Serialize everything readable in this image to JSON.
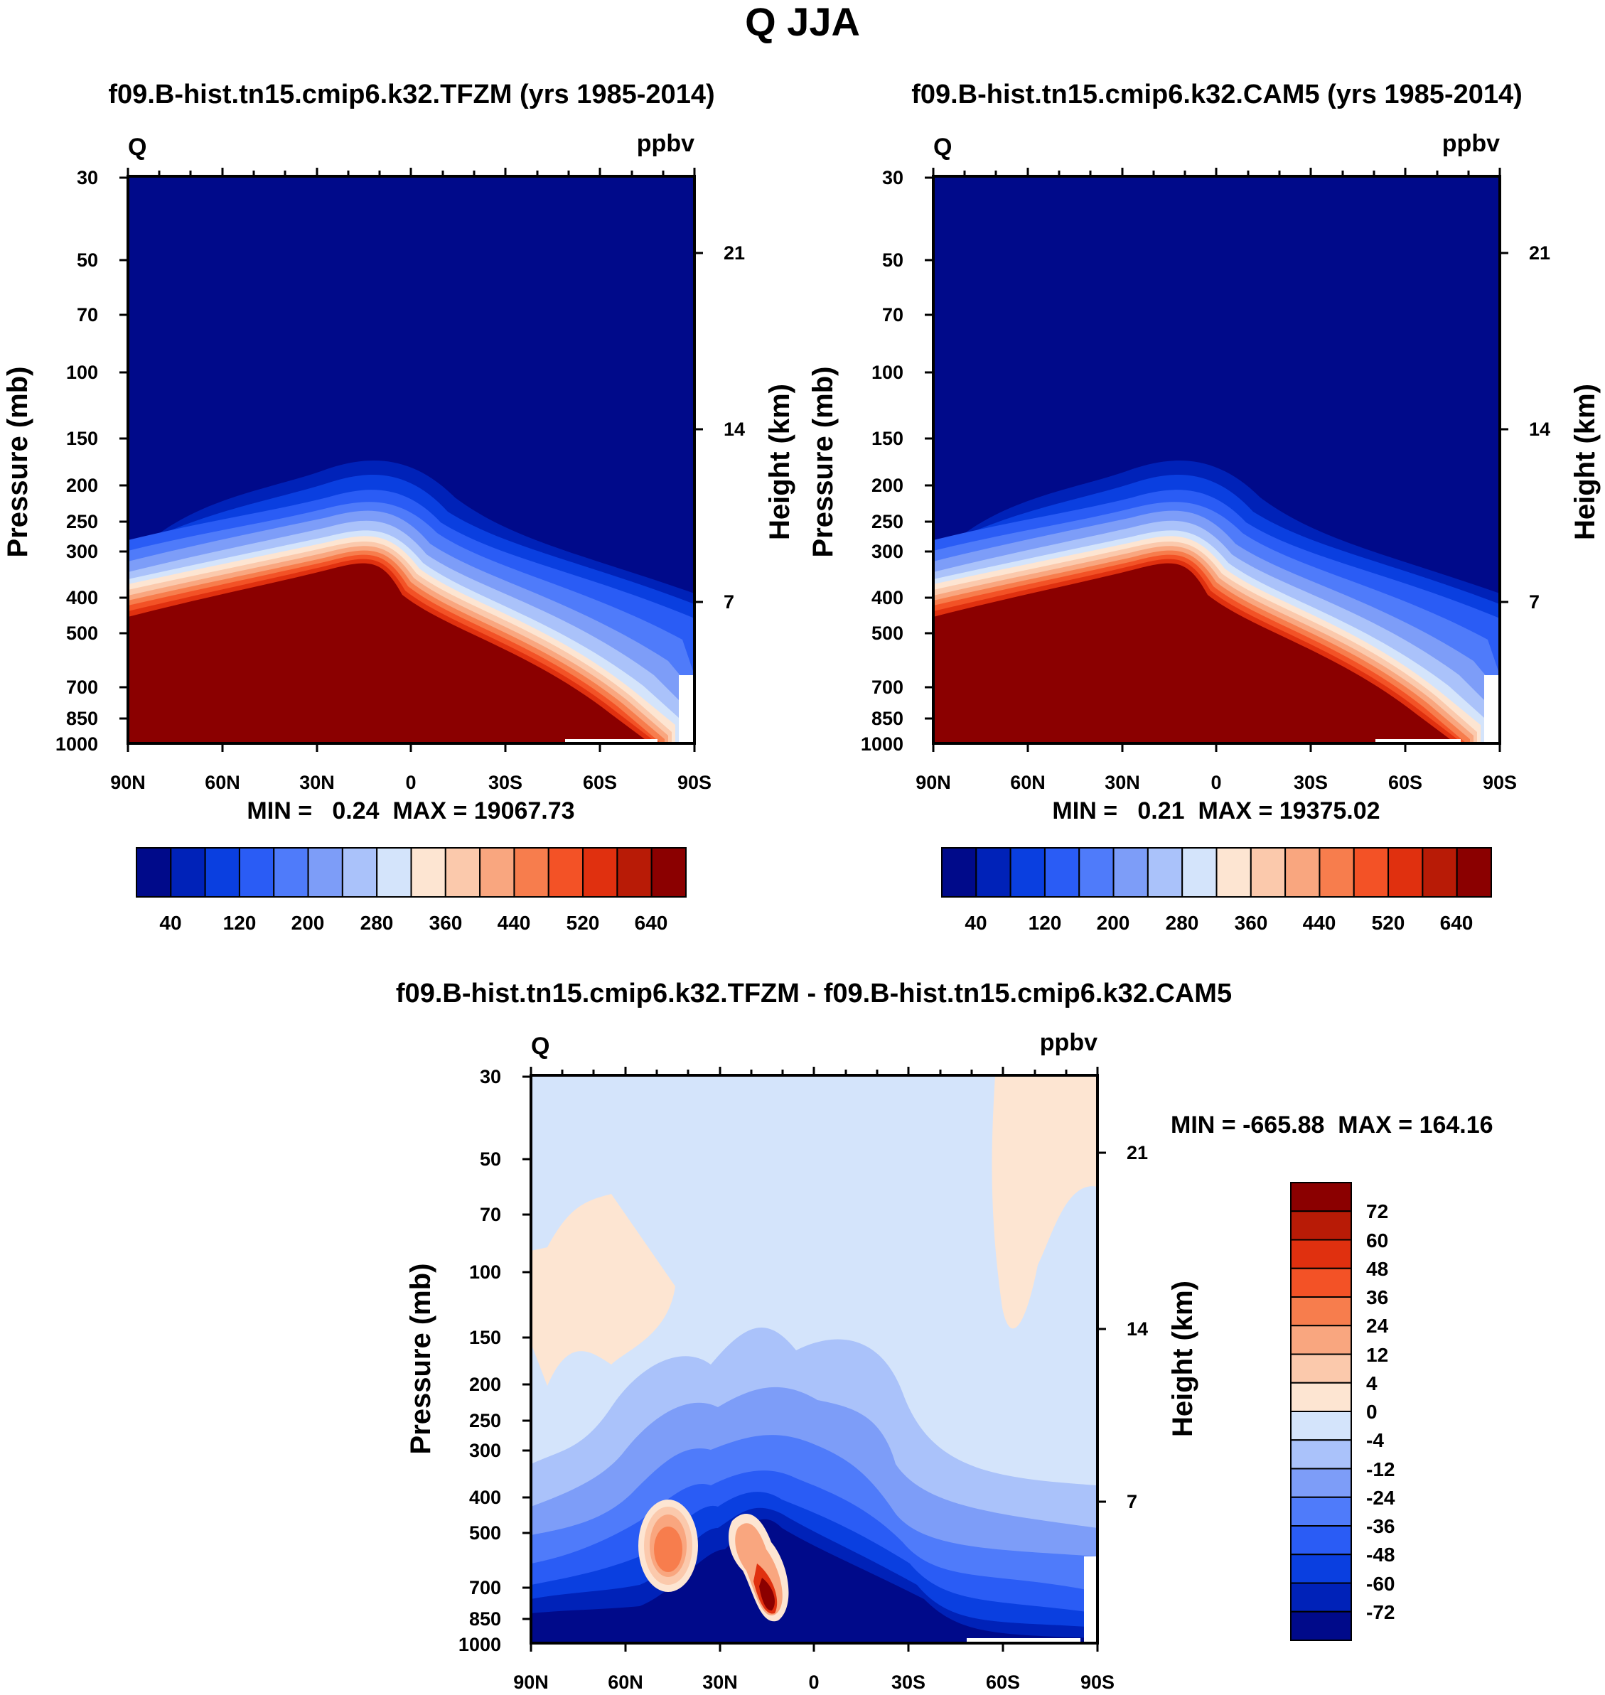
{
  "figure": {
    "title": "Q JJA"
  },
  "chart_data": [
    {
      "type": "heatmap",
      "title": "f09.B-hist.tn15.cmip6.k32.TFZM (yrs 1985-2014)",
      "variable": "Q",
      "units": "ppbv",
      "ylabel": "Pressure (mb)",
      "ylabel_right": "Height (km)",
      "x_ticks": [
        "90N",
        "60N",
        "30N",
        "0",
        "30S",
        "60S",
        "90S"
      ],
      "y_ticks": [
        30,
        50,
        70,
        100,
        150,
        200,
        250,
        300,
        400,
        500,
        700,
        850,
        1000
      ],
      "y_right_ticks": [
        21,
        14,
        7
      ],
      "y_scale": "log",
      "y_range": [
        1000,
        30
      ],
      "x_range": [
        -90,
        90
      ],
      "stats": "MIN =   0.24  MAX = 19067.73",
      "colorbar": {
        "orientation": "horizontal",
        "labels": [
          "40",
          "120",
          "200",
          "280",
          "360",
          "440",
          "520",
          "640"
        ],
        "colors": [
          "#000a8a",
          "#0022b8",
          "#0a3fe0",
          "#2a5cf5",
          "#4f7bfa",
          "#7d9df8",
          "#aac2fa",
          "#d4e4fb",
          "#fde5d2",
          "#fbc9ac",
          "#f9a67f",
          "#f77d4d",
          "#f35226",
          "#e0300f",
          "#b81b06",
          "#8b0000"
        ]
      },
      "field": "moisture decreasing with altitude; tropopause near 300 mb at 10N, near 500 mb at 90N, near 850 mb at 90S"
    },
    {
      "type": "heatmap",
      "title": "f09.B-hist.tn15.cmip6.k32.CAM5 (yrs 1985-2014)",
      "variable": "Q",
      "units": "ppbv",
      "ylabel": "Pressure (mb)",
      "ylabel_right": "Height (km)",
      "x_ticks": [
        "90N",
        "60N",
        "30N",
        "0",
        "30S",
        "60S",
        "90S"
      ],
      "y_ticks": [
        30,
        50,
        70,
        100,
        150,
        200,
        250,
        300,
        400,
        500,
        700,
        850,
        1000
      ],
      "y_right_ticks": [
        21,
        14,
        7
      ],
      "y_scale": "log",
      "y_range": [
        1000,
        30
      ],
      "x_range": [
        -90,
        90
      ],
      "stats": "MIN =   0.21  MAX = 19375.02",
      "colorbar": {
        "orientation": "horizontal",
        "labels": [
          "40",
          "120",
          "200",
          "280",
          "360",
          "440",
          "520",
          "640"
        ],
        "colors": [
          "#000a8a",
          "#0022b8",
          "#0a3fe0",
          "#2a5cf5",
          "#4f7bfa",
          "#7d9df8",
          "#aac2fa",
          "#d4e4fb",
          "#fde5d2",
          "#fbc9ac",
          "#f9a67f",
          "#f77d4d",
          "#f35226",
          "#e0300f",
          "#b81b06",
          "#8b0000"
        ]
      }
    },
    {
      "type": "heatmap",
      "title": "f09.B-hist.tn15.cmip6.k32.TFZM - f09.B-hist.tn15.cmip6.k32.CAM5",
      "variable": "Q",
      "units": "ppbv",
      "ylabel": "Pressure (mb)",
      "ylabel_right": "Height (km)",
      "x_ticks": [
        "90N",
        "60N",
        "30N",
        "0",
        "30S",
        "60S",
        "90S"
      ],
      "y_ticks": [
        30,
        50,
        70,
        100,
        150,
        200,
        250,
        300,
        400,
        500,
        700,
        850,
        1000
      ],
      "y_right_ticks": [
        21,
        14,
        7
      ],
      "y_scale": "log",
      "y_range": [
        1000,
        30
      ],
      "x_range": [
        -90,
        90
      ],
      "stats": "MIN = -665.88  MAX = 164.16",
      "colorbar": {
        "orientation": "vertical",
        "labels": [
          "72",
          "60",
          "48",
          "36",
          "24",
          "12",
          "4",
          "0",
          "-4",
          "-12",
          "-24",
          "-36",
          "-48",
          "-60",
          "-72"
        ],
        "colors": [
          "#8b0000",
          "#b81b06",
          "#e0300f",
          "#f35226",
          "#f77d4d",
          "#f9a67f",
          "#fbc9ac",
          "#fde5d2",
          "#d4e4fb",
          "#aac2fa",
          "#7d9df8",
          "#4f7bfa",
          "#2a5cf5",
          "#0a3fe0",
          "#0022b8",
          "#000a8a"
        ]
      }
    }
  ]
}
